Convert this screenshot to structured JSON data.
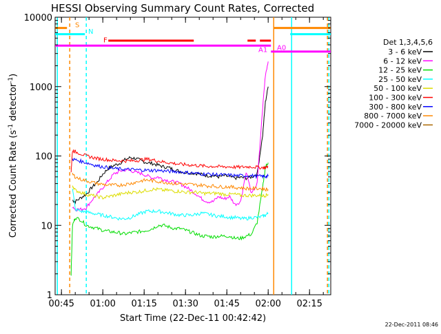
{
  "chart_data": {
    "type": "line",
    "title": "HESSI Observing Summary Count Rates, Corrected",
    "xlabel": "Start Time (22-Dec-11 00:42:42)",
    "ylabel_main": "Corrected Count Rate (s",
    "ylabel_sup1": "-1",
    "ylabel_mid": " detector",
    "ylabel_sup2": "-1",
    "ylabel_end": ")",
    "yscale": "log",
    "ylim": [
      1,
      10000
    ],
    "xlim_minutes": [
      42.7,
      142.7
    ],
    "x_ticks": [
      {
        "label": "00:45",
        "minutes": 45
      },
      {
        "label": "01:00",
        "minutes": 60
      },
      {
        "label": "01:15",
        "minutes": 75
      },
      {
        "label": "01:30",
        "minutes": 90
      },
      {
        "label": "01:45",
        "minutes": 105
      },
      {
        "label": "02:00",
        "minutes": 120
      },
      {
        "label": "02:15",
        "minutes": 135
      }
    ],
    "y_ticks": [
      {
        "label": "1",
        "value": 1
      },
      {
        "label": "10",
        "value": 10
      },
      {
        "label": "100",
        "value": 100
      },
      {
        "label": "1000",
        "value": 1000
      },
      {
        "label": "10000",
        "value": 10000
      }
    ],
    "legend": {
      "title": "Det 1,3,4,5,6",
      "position": "right",
      "entries": [
        {
          "label": "3 - 6 keV",
          "color": "#000000"
        },
        {
          "label": "6 - 12 keV",
          "color": "#ff00ff"
        },
        {
          "label": "12 - 25 keV",
          "color": "#00dd00"
        },
        {
          "label": "25 - 50 keV",
          "color": "#00ffff"
        },
        {
          "label": "50 - 100 keV",
          "color": "#dddd00"
        },
        {
          "label": "100 - 300 keV",
          "color": "#ff0000"
        },
        {
          "label": "300 - 800 keV",
          "color": "#0000ff"
        },
        {
          "label": "800 - 7000 keV",
          "color": "#ff8800"
        },
        {
          "label": "7000 - 20000 keV",
          "color": "#aa6600"
        }
      ]
    },
    "flag_labels": [
      {
        "text": "S",
        "color": "#ff8800"
      },
      {
        "text": "N",
        "color": "#00ffff"
      },
      {
        "text": "F",
        "color": "#ff0000"
      },
      {
        "text": "A1",
        "color": "#ff00ff"
      },
      {
        "text": "A0",
        "color": "#ff00ff"
      }
    ],
    "flag_bars": [
      {
        "name": "S",
        "color": "#ff8800",
        "y": 7000,
        "segments": [
          [
            42.7,
            47
          ],
          [
            122,
            142.7
          ]
        ]
      },
      {
        "name": "N",
        "color": "#00ffff",
        "y": 5700,
        "segments": [
          [
            42.7,
            53.5
          ],
          [
            128,
            142.7
          ]
        ]
      },
      {
        "name": "F",
        "color": "#ff0000",
        "y": 4600,
        "segments": [
          [
            62,
            93
          ],
          [
            112.5,
            115.5
          ],
          [
            117,
            121
          ]
        ]
      },
      {
        "name": "A1",
        "color": "#ff00ff",
        "y": 3900,
        "segments": [
          [
            42.7,
            121
          ]
        ]
      },
      {
        "name": "A0",
        "color": "#ff00ff",
        "y": 3200,
        "segments": [
          [
            121,
            142.7
          ]
        ]
      }
    ],
    "vertical_lines": [
      {
        "minutes": 43.5,
        "color": "#00ffff",
        "style": "solid"
      },
      {
        "minutes": 48,
        "color": "#ff8800",
        "style": "dashed"
      },
      {
        "minutes": 54,
        "color": "#00ffff",
        "style": "dashed"
      },
      {
        "minutes": 122,
        "color": "#ff8800",
        "style": "solid"
      },
      {
        "minutes": 128.5,
        "color": "#00ffff",
        "style": "solid"
      },
      {
        "minutes": 141.5,
        "color": "#ff8800",
        "style": "dashed"
      },
      {
        "minutes": 142,
        "color": "#00ffff",
        "style": "dashed"
      }
    ],
    "series": [
      {
        "name": "3 - 6 keV",
        "color": "#000000",
        "x": [
          49,
          50,
          52,
          54,
          56,
          58,
          60,
          62,
          64,
          66,
          68,
          70,
          72,
          74,
          76,
          78,
          80,
          82,
          84,
          86,
          88,
          90,
          92,
          94,
          96,
          98,
          100,
          102,
          104,
          106,
          108,
          110,
          112,
          114,
          116,
          118,
          119,
          120
        ],
        "y": [
          23,
          22,
          25,
          28,
          35,
          42,
          55,
          66,
          73,
          78,
          88,
          95,
          92,
          85,
          80,
          78,
          74,
          70,
          68,
          63,
          60,
          58,
          57,
          56,
          54,
          52,
          52,
          50,
          52,
          50,
          48,
          49,
          48,
          50,
          55,
          200,
          600,
          1000
        ]
      },
      {
        "name": "6 - 12 keV",
        "color": "#ff00ff",
        "x": [
          49,
          50,
          52,
          54,
          56,
          58,
          60,
          62,
          64,
          66,
          68,
          70,
          72,
          74,
          76,
          78,
          80,
          82,
          84,
          86,
          88,
          90,
          92,
          94,
          96,
          98,
          100,
          102,
          104,
          106,
          108,
          110,
          112,
          114,
          116,
          118,
          119,
          120
        ],
        "y": [
          19,
          17,
          17,
          18,
          23,
          28,
          35,
          44,
          55,
          60,
          63,
          62,
          58,
          56,
          52,
          48,
          50,
          46,
          44,
          42,
          40,
          36,
          32,
          28,
          24,
          22,
          22,
          26,
          24,
          26,
          20,
          22,
          60,
          28,
          40,
          500,
          1500,
          2300
        ]
      },
      {
        "name": "12 - 25 keV",
        "color": "#00dd00",
        "x": [
          48.5,
          49,
          50,
          52,
          54,
          56,
          58,
          60,
          62,
          64,
          66,
          68,
          70,
          72,
          74,
          76,
          78,
          80,
          82,
          84,
          86,
          88,
          90,
          92,
          94,
          96,
          98,
          100,
          102,
          104,
          106,
          108,
          110,
          112,
          114,
          116,
          118,
          119,
          120
        ],
        "y": [
          2,
          10,
          13,
          12,
          10,
          9.5,
          9,
          8.5,
          8.2,
          8,
          7.8,
          7.5,
          7.8,
          8,
          8.2,
          8.5,
          9,
          10,
          10,
          9.5,
          9,
          9,
          8.5,
          8,
          7.5,
          7,
          7,
          6.8,
          7,
          7,
          7,
          6.5,
          6.5,
          7,
          7.5,
          11,
          35,
          70,
          80
        ]
      },
      {
        "name": "25 - 50 keV",
        "color": "#00ffff",
        "x": [
          49,
          50,
          52,
          54,
          56,
          58,
          60,
          62,
          64,
          66,
          68,
          70,
          72,
          74,
          76,
          78,
          80,
          82,
          84,
          86,
          88,
          90,
          92,
          94,
          96,
          98,
          100,
          102,
          104,
          106,
          108,
          110,
          112,
          114,
          116,
          118,
          119,
          120
        ],
        "y": [
          35,
          17,
          16,
          15.5,
          15,
          14.5,
          14,
          13.5,
          13,
          12.5,
          12.5,
          13,
          14,
          15,
          16,
          16,
          16,
          15.5,
          15,
          14.5,
          14,
          14,
          14,
          14.5,
          15,
          14.5,
          14,
          13.5,
          13.5,
          13,
          13,
          12.5,
          12.5,
          13,
          13,
          13.5,
          14,
          15
        ]
      },
      {
        "name": "50 - 100 keV",
        "color": "#dddd00",
        "x": [
          49,
          50,
          52,
          54,
          56,
          58,
          60,
          62,
          64,
          66,
          68,
          70,
          72,
          74,
          76,
          78,
          80,
          82,
          84,
          86,
          88,
          90,
          92,
          94,
          96,
          98,
          100,
          102,
          104,
          106,
          108,
          110,
          112,
          114,
          116,
          118,
          119,
          120
        ],
        "y": [
          38,
          32,
          30,
          28,
          27,
          26,
          25,
          26,
          27,
          28,
          29,
          30,
          30,
          31,
          32,
          33,
          33,
          32,
          32,
          31,
          31,
          30,
          30,
          30,
          29,
          29,
          29,
          29,
          28,
          28,
          28,
          27,
          27,
          27,
          27,
          27,
          27,
          28
        ]
      },
      {
        "name": "100 - 300 keV",
        "color": "#ff0000",
        "x": [
          48.5,
          49,
          50,
          52,
          54,
          56,
          58,
          60,
          62,
          64,
          66,
          68,
          70,
          72,
          74,
          76,
          78,
          80,
          82,
          84,
          86,
          88,
          90,
          92,
          94,
          96,
          98,
          100,
          102,
          104,
          106,
          108,
          110,
          112,
          114,
          116,
          118,
          119,
          120
        ],
        "y": [
          60,
          120,
          115,
          108,
          100,
          96,
          92,
          90,
          88,
          86,
          86,
          85,
          85,
          86,
          88,
          90,
          88,
          85,
          82,
          80,
          78,
          76,
          75,
          74,
          73,
          72,
          71,
          71,
          70,
          70,
          70,
          69,
          69,
          70,
          70,
          69,
          68,
          68,
          70
        ]
      },
      {
        "name": "300 - 800 keV",
        "color": "#0000ff",
        "x": [
          49,
          50,
          52,
          54,
          56,
          58,
          60,
          62,
          64,
          66,
          68,
          70,
          72,
          74,
          76,
          78,
          80,
          82,
          84,
          86,
          88,
          90,
          92,
          94,
          96,
          98,
          100,
          102,
          104,
          106,
          108,
          110,
          112,
          114,
          116,
          118,
          119,
          120
        ],
        "y": [
          90,
          88,
          84,
          80,
          76,
          72,
          70,
          68,
          66,
          65,
          64,
          64,
          63,
          63,
          62,
          62,
          62,
          61,
          60,
          60,
          59,
          58,
          57,
          56,
          55,
          55,
          54,
          54,
          53,
          53,
          52,
          52,
          52,
          52,
          51,
          51,
          51,
          51
        ]
      },
      {
        "name": "800 - 7000 keV",
        "color": "#ff8800",
        "x": [
          49,
          50,
          52,
          54,
          56,
          58,
          60,
          62,
          64,
          66,
          68,
          70,
          72,
          74,
          76,
          78,
          80,
          82,
          84,
          86,
          88,
          90,
          92,
          94,
          96,
          98,
          100,
          102,
          104,
          106,
          108,
          110,
          112,
          114,
          116,
          118,
          119,
          120
        ],
        "y": [
          55,
          50,
          46,
          44,
          42,
          40,
          39,
          38,
          38,
          38,
          39,
          40,
          42,
          44,
          45,
          44,
          43,
          42,
          41,
          40,
          40,
          39,
          39,
          38,
          38,
          37,
          37,
          36,
          36,
          36,
          35,
          35,
          34,
          34,
          34,
          34,
          33,
          33
        ]
      }
    ]
  },
  "footer": {
    "timestamp": "22-Dec-2011 08:46"
  }
}
